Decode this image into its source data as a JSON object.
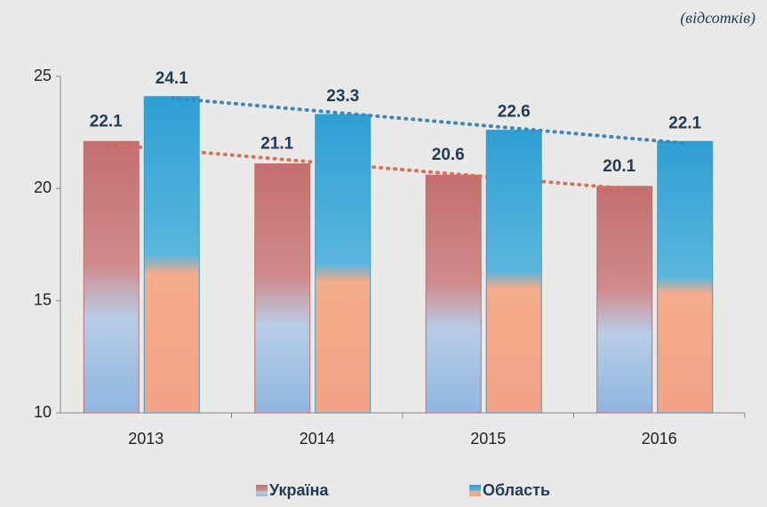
{
  "chart_data": {
    "type": "bar",
    "subtitle": "(відсотків)",
    "categories": [
      "2013",
      "2014",
      "2015",
      "2016"
    ],
    "series": [
      {
        "name": "Україна",
        "color": "#c46f6f",
        "trend_color": "#d9705a",
        "values": [
          22.1,
          21.1,
          20.6,
          20.1
        ]
      },
      {
        "name": "Область",
        "color": "#2f9fd4",
        "trend_color": "#3a86c0",
        "values": [
          24.1,
          23.3,
          22.6,
          22.1
        ]
      }
    ],
    "ylim": [
      10,
      25
    ],
    "yticks": [
      10,
      15,
      20,
      25
    ],
    "grid": false
  }
}
